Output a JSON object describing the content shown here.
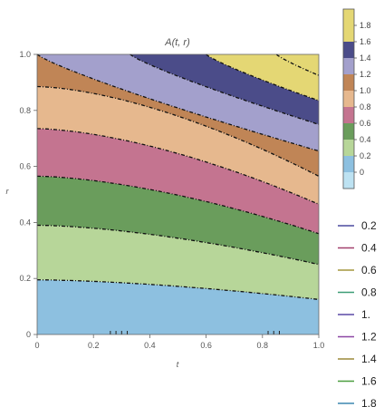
{
  "chart_data": {
    "type": "contour",
    "title": "A(t, r)",
    "xlabel": "t",
    "ylabel": "r",
    "xlim": [
      0,
      1
    ],
    "ylim": [
      0,
      1
    ],
    "x_ticks": [
      "0",
      "0.2",
      "0.4",
      "0.6",
      "0.8",
      "1.0"
    ],
    "y_ticks": [
      "0",
      "0.2",
      "0.4",
      "0.6",
      "0.8",
      "1.0"
    ],
    "contour_levels": [
      0.2,
      0.4,
      0.6,
      0.8,
      1.0,
      1.2,
      1.4,
      1.6,
      1.8
    ],
    "contour_r_at_t0": [
      0.195,
      0.39,
      0.565,
      0.735,
      0.885,
      1.0,
      1.0,
      1.0,
      1.0
    ],
    "contour_r_at_t1": [
      0.125,
      0.25,
      0.36,
      0.465,
      0.565,
      0.655,
      0.75,
      0.835,
      0.925
    ],
    "bands": [
      {
        "range": "0–0.2",
        "color": "#8DC0E0"
      },
      {
        "range": "0.2–0.4",
        "color": "#B7D699"
      },
      {
        "range": "0.4–0.6",
        "color": "#6A9D5C"
      },
      {
        "range": "0.6–0.8",
        "color": "#C47490"
      },
      {
        "range": "0.8–1.0",
        "color": "#E6B88E"
      },
      {
        "range": "1.0–1.2",
        "color": "#C08556"
      },
      {
        "range": "1.2–1.4",
        "color": "#A3A0CC"
      },
      {
        "range": "1.4–1.6",
        "color": "#4B4C89"
      },
      {
        "range": "1.6–1.8",
        "color": "#E4D774"
      }
    ],
    "colorbar": {
      "labels": [
        "1.8",
        "1.6",
        "1.4",
        "1.2",
        "1.0",
        "0.8",
        "0.6",
        "0.4",
        "0.2",
        "0"
      ],
      "colors": [
        "#E4D774",
        "#E4D774",
        "#4B4C89",
        "#A3A0CC",
        "#C08556",
        "#E6B88E",
        "#C47490",
        "#6A9D5C",
        "#B7D699",
        "#8DC0E0",
        "#BDE2F2"
      ]
    },
    "legend": {
      "placement": "right",
      "entries": [
        {
          "label": "0.2",
          "color": "#4B4A9F"
        },
        {
          "label": "0.4",
          "color": "#A2406D"
        },
        {
          "label": "0.6",
          "color": "#A3973D"
        },
        {
          "label": "0.8",
          "color": "#3C9D76"
        },
        {
          "label": "1.",
          "color": "#5A48A6"
        },
        {
          "label": "1.2",
          "color": "#8C46A4"
        },
        {
          "label": "1.4",
          "color": "#9B8A3A"
        },
        {
          "label": "1.6",
          "color": "#4B9E3F"
        },
        {
          "label": "1.8",
          "color": "#3D87B0"
        }
      ]
    }
  }
}
